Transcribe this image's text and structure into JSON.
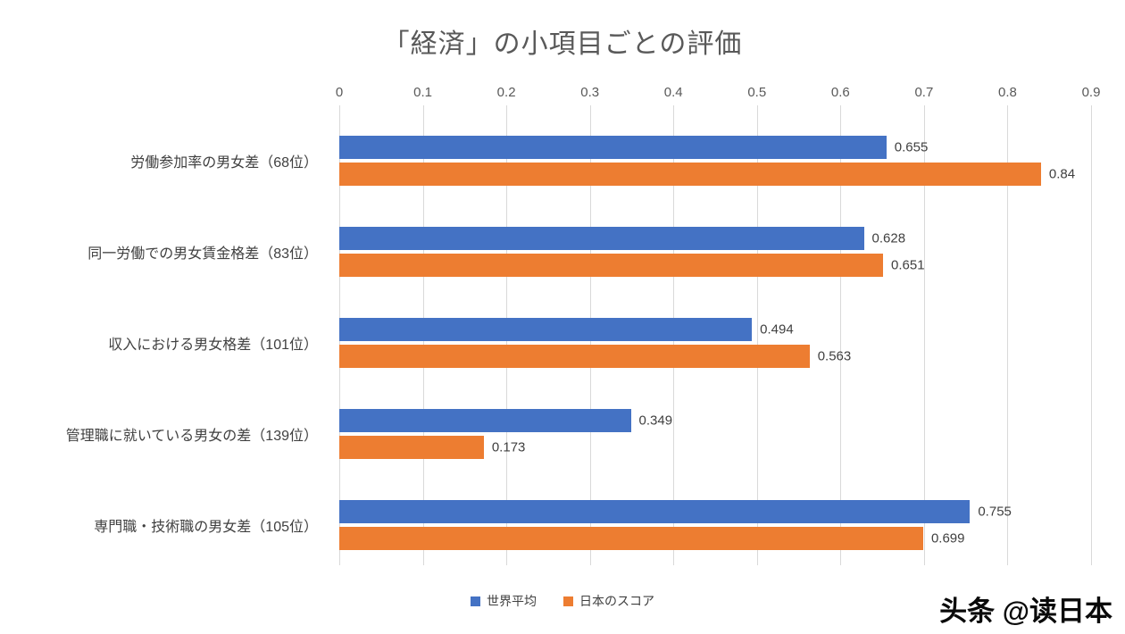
{
  "watermark": "头条 @读日本",
  "chart_data": {
    "type": "bar",
    "orientation": "horizontal",
    "title": "「経済」の小項目ごとの評価",
    "categories": [
      "労働参加率の男女差（68位）",
      "同一労働での男女賃金格差（83位）",
      "収入における男女格差（101位）",
      "管理職に就いている男女の差（139位）",
      "専門職・技術職の男女差（105位）"
    ],
    "series": [
      {
        "name": "世界平均",
        "color": "#4472C4",
        "values": [
          0.655,
          0.628,
          0.494,
          0.349,
          0.755
        ]
      },
      {
        "name": "日本のスコア",
        "color": "#ED7D31",
        "values": [
          0.84,
          0.651,
          0.563,
          0.173,
          0.699
        ]
      }
    ],
    "xlim": [
      0,
      0.9
    ],
    "xticks": [
      0,
      0.1,
      0.2,
      0.3,
      0.4,
      0.5,
      0.6,
      0.7,
      0.8,
      0.9
    ],
    "grid": true,
    "value_labels": true,
    "axis_position": "top",
    "legend_position": "bottom"
  }
}
